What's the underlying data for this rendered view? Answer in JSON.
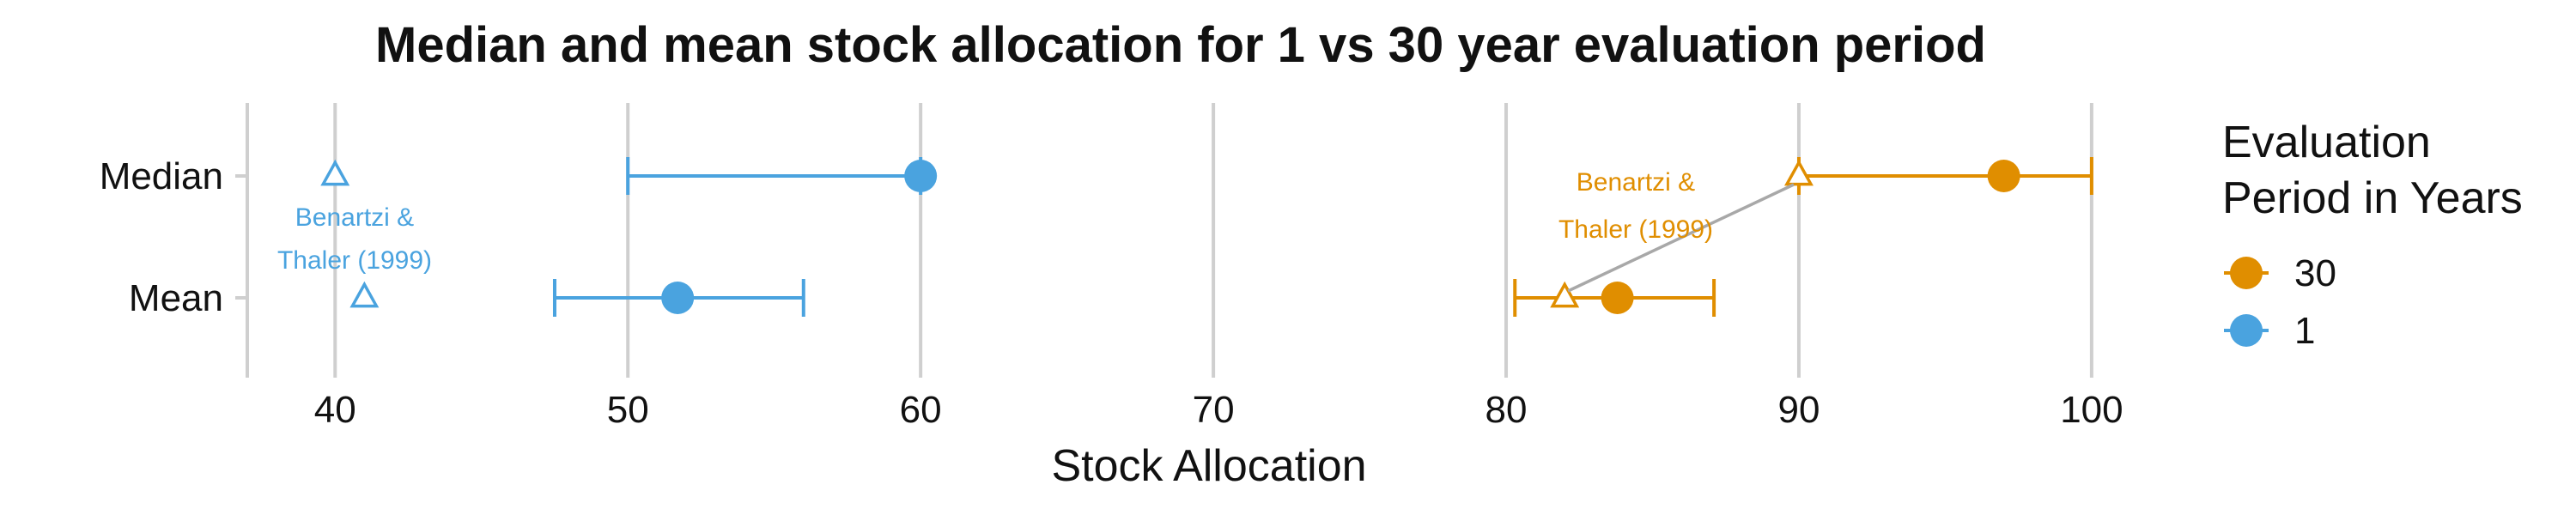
{
  "chart_data": {
    "type": "dot-errorbar",
    "title": "Median and mean stock allocation for 1 vs 30 year evaluation period",
    "xlabel": "Stock Allocation",
    "ylabel": "",
    "xlim": [
      37,
      101
    ],
    "x_ticks": [
      "40",
      "50",
      "60",
      "70",
      "80",
      "90",
      "100"
    ],
    "x_tick_values": [
      40,
      50,
      60,
      70,
      80,
      90,
      100
    ],
    "categories": [
      "Median",
      "Mean"
    ],
    "grid": "vertical-major",
    "legend": {
      "title_line1": "Evaluation",
      "title_line2": "Period in Years",
      "placement": "right",
      "entries": [
        {
          "label": "30",
          "color": "#E08E00"
        },
        {
          "label": "1",
          "color": "#4AA3DF"
        }
      ]
    },
    "series": [
      {
        "name": "1",
        "color": "#4AA3DF",
        "points": [
          {
            "category": "Median",
            "value": 60,
            "low": 50,
            "high": 60
          },
          {
            "category": "Mean",
            "value": 51.7,
            "low": 47.5,
            "high": 56
          }
        ],
        "reference": [
          {
            "category": "Median",
            "value": 40
          },
          {
            "category": "Mean",
            "value": 41
          }
        ]
      },
      {
        "name": "30",
        "color": "#E08E00",
        "points": [
          {
            "category": "Median",
            "value": 97,
            "low": 90,
            "high": 100
          },
          {
            "category": "Mean",
            "value": 83.8,
            "low": 80.3,
            "high": 87.1
          }
        ],
        "reference": [
          {
            "category": "Median",
            "value": 90
          },
          {
            "category": "Mean",
            "value": 82
          }
        ]
      }
    ],
    "annotations": [
      {
        "series": "1",
        "line1": "Benartzi &",
        "line2": "Thaler (1999)",
        "color": "#4AA3DF"
      },
      {
        "series": "30",
        "line1": "Benartzi &",
        "line2": "Thaler (1999)",
        "color": "#E08E00"
      }
    ]
  }
}
